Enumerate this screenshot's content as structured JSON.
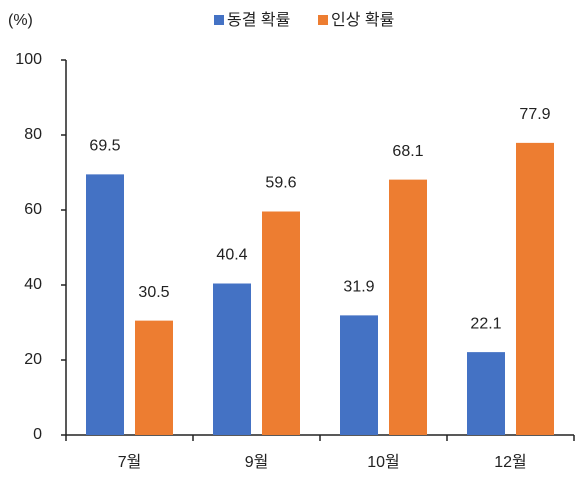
{
  "chart_data": {
    "type": "bar",
    "y_label": "(%)",
    "categories": [
      "7월",
      "9월",
      "10월",
      "12월"
    ],
    "series": [
      {
        "name": "동결 확률",
        "color": "#4472c4",
        "values": [
          69.5,
          40.4,
          31.9,
          22.1
        ]
      },
      {
        "name": "인상 확률",
        "color": "#ed7d31",
        "values": [
          30.5,
          59.6,
          68.1,
          77.9
        ]
      }
    ],
    "ylim": [
      0,
      100
    ],
    "yticks": [
      0,
      20,
      40,
      60,
      80,
      100
    ],
    "grid": false,
    "legend": "top"
  }
}
